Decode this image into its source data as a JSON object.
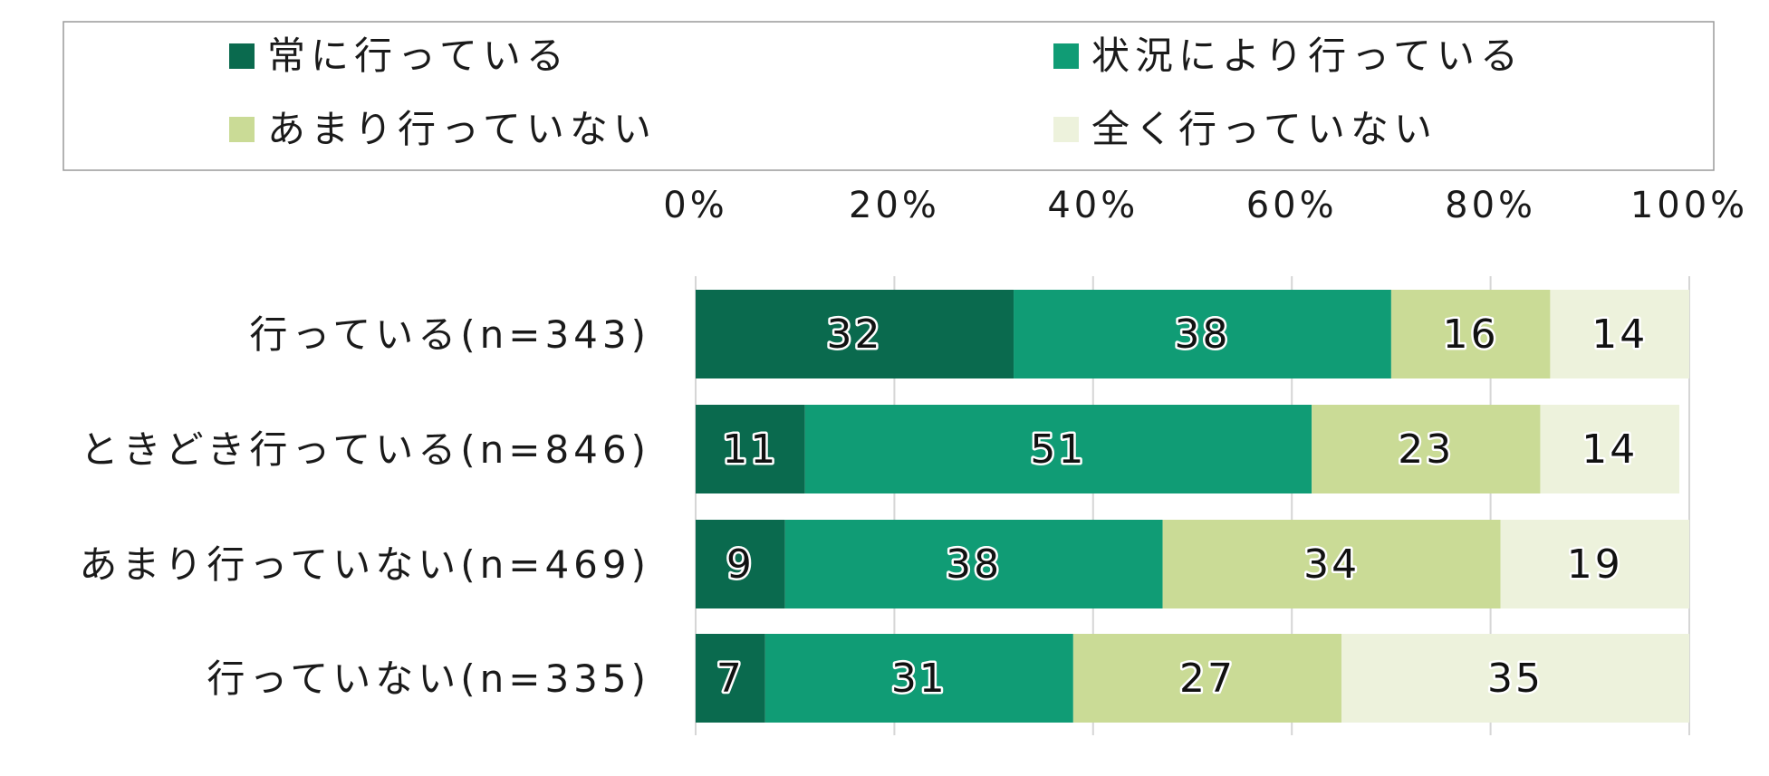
{
  "chart_data": {
    "type": "bar",
    "orientation": "horizontal",
    "stacked": true,
    "percent": true,
    "title": "",
    "xlabel": "",
    "ylabel": "",
    "xlim": [
      0,
      100
    ],
    "xticks": [
      "0%",
      "20%",
      "40%",
      "60%",
      "80%",
      "100%"
    ],
    "grid": true,
    "legend_position": "top",
    "categories": [
      "行っている(n=343)",
      "ときどき行っている(n=846)",
      "あまり行っていない(n=469)",
      "行っていない(n=335)"
    ],
    "series": [
      {
        "name": "常に行っている",
        "color": "#0a6a4e",
        "values": [
          32,
          11,
          9,
          7
        ]
      },
      {
        "name": "状況により行っている",
        "color": "#109c75",
        "values": [
          38,
          51,
          38,
          31
        ]
      },
      {
        "name": "あまり行っていない",
        "color": "#cadb96",
        "values": [
          16,
          23,
          34,
          27
        ]
      },
      {
        "name": "全く行っていない",
        "color": "#edf2dc",
        "values": [
          14,
          14,
          19,
          35
        ]
      }
    ]
  }
}
